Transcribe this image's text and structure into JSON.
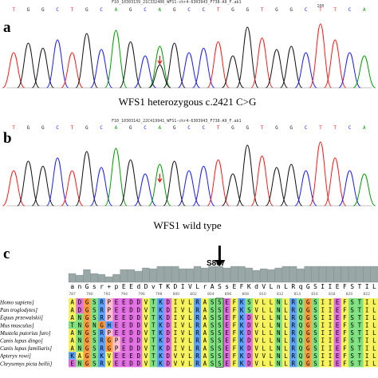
{
  "panels": {
    "a": {
      "letter": "a",
      "file_label": "F10_10303139_21C332406_WFS1-chr4-6303943_F738-A9_F.ab1",
      "bases": [
        "T",
        "G",
        "G",
        "C",
        "T",
        "G",
        "C",
        "A",
        "G",
        "C",
        "A",
        "G",
        "C",
        "C",
        "T",
        "G",
        "G",
        "T",
        "G",
        "G",
        "C",
        "T",
        "T",
        "C",
        "A"
      ],
      "position_label": "100",
      "caption": "WFS1 heterozygous c.2421 C>G"
    },
    "b": {
      "letter": "b",
      "file_label": "F10_10303142_22C419941_WFS1-chr4-6303943_F738-A9_F.ab1",
      "bases": [
        "T",
        "G",
        "G",
        "C",
        "T",
        "G",
        "C",
        "A",
        "G",
        "C",
        "A",
        "G",
        "C",
        "C",
        "T",
        "G",
        "G",
        "T",
        "G",
        "G",
        "C",
        "T",
        "T",
        "C",
        "A"
      ],
      "caption": "WFS1 wild type"
    },
    "c": {
      "letter": "c",
      "marker_label": "S807",
      "consensus": [
        "a",
        "n",
        "G",
        "s",
        "r",
        "+",
        "p",
        "E",
        "E",
        "d",
        "D",
        "v",
        "T",
        "K",
        "D",
        "I",
        "V",
        "L",
        "r",
        "A",
        "S",
        "s",
        "E",
        "F",
        "K",
        "d",
        "V",
        "L",
        "n",
        "L",
        "R",
        "q",
        "G",
        "S",
        "I",
        "I",
        "E",
        "F",
        "S",
        "T",
        "I",
        "L"
      ],
      "position_ticks": [
        "787",
        "790",
        "792",
        "794",
        "796",
        "798",
        "800",
        "802",
        "804",
        "806",
        "808",
        "810",
        "812",
        "814",
        "816",
        "818",
        "820",
        "822"
      ],
      "species": [
        "Homo sapiens]",
        "Pan troglodytes]",
        "Equus przewalskii]",
        "Mus musculus]",
        "Mustela putorius furo]",
        "Canis lupus dingo]",
        "Canis lupus familiaris]",
        "Apteryx rowi]",
        "Chrysemys picta bellii]"
      ],
      "alignment": [
        "ADGSRPEEDDVTKDIVLRASSEFKSVLLNLRQGSIIEFSTIL",
        "ADGSRPEEDDVTKDIVLRASSEFKSVLLNLRQGSIIEFSTIL",
        "ANGSRPEEDDVTKDIVLRASSEFKDVLLNLRQGSIIEFSTIL",
        "TNGNGHEEDDVTKDIVLRASSEFKDVLLNLRQGSIIEFSTIL",
        "ANGSRPEEDDVTKDIVLRASSEFKDVLLNLRQGSIIEFSTIL",
        "ANGSRGPEDDVTKDIVLRASSEFKDVLLNLRQGSIIEFSTIL",
        "ANGSRGPEDDVTKDIVLRASSEFKDVLLNLRQGSIIEFSTIL",
        "KAGSKVEEEDVTKDVVLRASSEFKDVVLNLRQGSIIEFSTIL",
        "ENGSRVEEDDVTKDVVLRASSEFKDVLLNLRQGSIIEFSTIL"
      ],
      "conservation": [
        0.55,
        0.45,
        0.8,
        0.55,
        0.5,
        0.35,
        0.5,
        0.8,
        0.8,
        0.7,
        0.9,
        0.85,
        1,
        1,
        1,
        0.85,
        0.85,
        1,
        0.9,
        1,
        1,
        0.9,
        1,
        1,
        0.9,
        0.75,
        0.85,
        0.8,
        0.9,
        1,
        1,
        0.85,
        1,
        1,
        1,
        1,
        1,
        1,
        1,
        1,
        1,
        1
      ]
    }
  },
  "colors": {
    "A": "#f7f07a",
    "G": "#ff9a3c",
    "C": "#4a6cf7",
    "T": "#ff2a2a",
    "trace_a": "#00a000",
    "trace_c": "#1a1aff",
    "trace_g": "#111111",
    "trace_t": "#ff1a1a",
    "marker": "#e02020"
  }
}
